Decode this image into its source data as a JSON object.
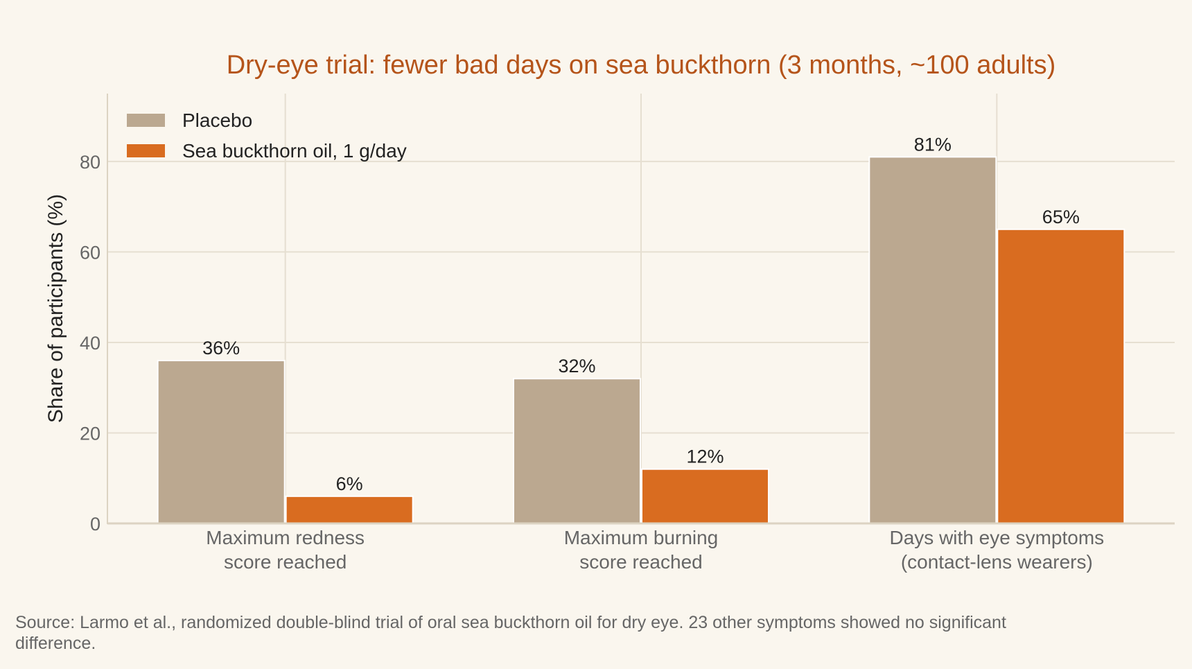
{
  "colors": {
    "background": "#faf6ee",
    "placebo": "#bba890",
    "treatment": "#d96c20",
    "title": "#b5541a",
    "grid": "#e6dfd1",
    "axis": "#dcd3c2"
  },
  "chart_data": {
    "type": "bar",
    "title": "Dry-eye trial: fewer bad days on sea buckthorn (3 months, ~100 adults)",
    "xlabel": "",
    "ylabel": "Share of participants (%)",
    "ylim": [
      0,
      95
    ],
    "yticks": [
      0,
      20,
      40,
      60,
      80
    ],
    "grid": true,
    "legend_position": "top-left",
    "categories": [
      [
        "Maximum redness",
        "score reached"
      ],
      [
        "Maximum burning",
        "score reached"
      ],
      [
        "Days with eye symptoms",
        "(contact-lens wearers)"
      ]
    ],
    "series": [
      {
        "name": "Placebo",
        "color": "#bba890",
        "values": [
          36,
          32,
          81
        ],
        "labels": [
          "36%",
          "32%",
          "81%"
        ]
      },
      {
        "name": "Sea buckthorn oil, 1 g/day",
        "color": "#d96c20",
        "values": [
          6,
          12,
          65
        ],
        "labels": [
          "6%",
          "12%",
          "65%"
        ]
      }
    ],
    "source_lines": [
      "Source: Larmo et al., randomized double-blind trial of oral sea buckthorn oil for dry eye. 23 other symptoms showed no significant",
      "difference."
    ]
  }
}
